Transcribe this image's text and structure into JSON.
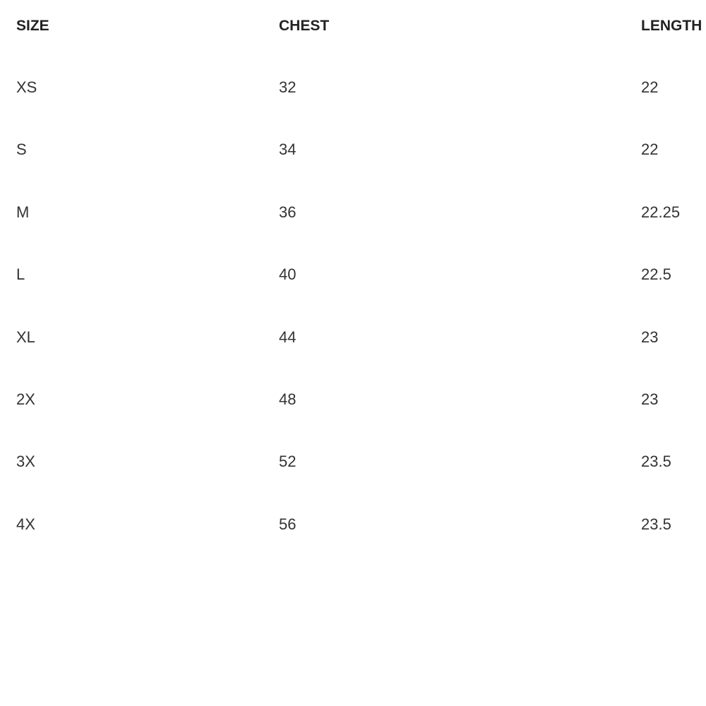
{
  "table": {
    "headers": [
      "SIZE",
      "CHEST",
      "LENGTH"
    ],
    "rows": [
      [
        "XS",
        32,
        22
      ],
      [
        "S",
        34,
        22
      ],
      [
        "M",
        36,
        22.25
      ],
      [
        "L",
        40,
        22.5
      ],
      [
        "XL",
        44,
        23
      ],
      [
        "2X",
        48,
        23
      ],
      [
        "3X",
        52,
        23.5
      ],
      [
        "4X",
        56,
        23.5
      ]
    ]
  }
}
